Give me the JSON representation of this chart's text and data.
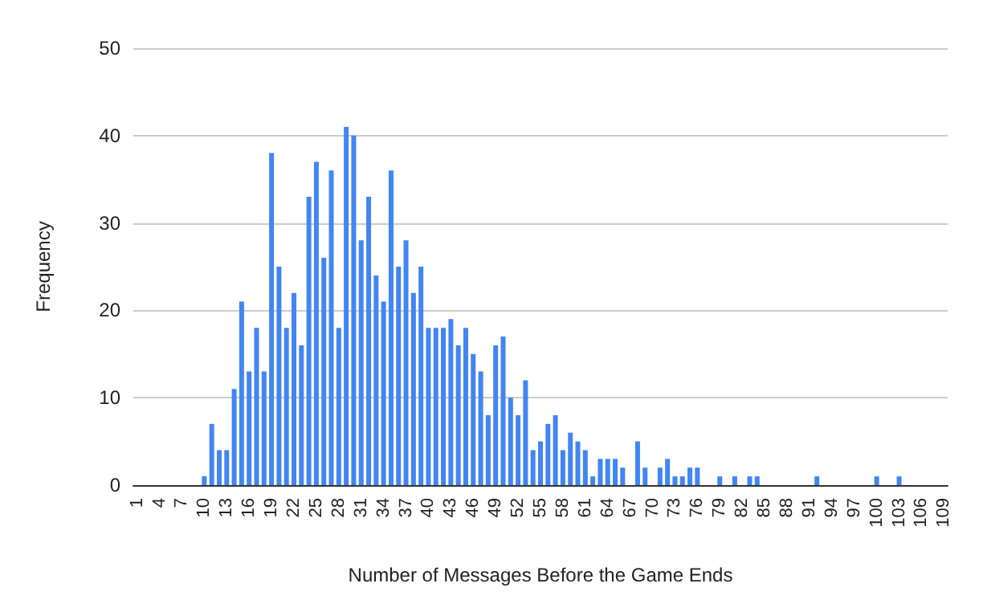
{
  "chart_data": {
    "type": "bar",
    "xlabel": "Number of Messages Before the Game Ends",
    "ylabel": "Frequency",
    "color": "#4285f4",
    "categories": [
      "1",
      null,
      null,
      "4",
      null,
      null,
      "7",
      null,
      null,
      "10",
      null,
      null,
      "13",
      null,
      null,
      "16",
      null,
      null,
      "19",
      null,
      null,
      "22",
      null,
      null,
      "25",
      null,
      null,
      "28",
      null,
      null,
      "31",
      null,
      null,
      "34",
      null,
      null,
      "37",
      null,
      null,
      "40",
      null,
      null,
      "43",
      null,
      null,
      "46",
      null,
      null,
      "49",
      null,
      null,
      "52",
      null,
      null,
      "55",
      null,
      null,
      "58",
      null,
      null,
      "61",
      null,
      null,
      "64",
      null,
      null,
      "67",
      null,
      null,
      "70",
      null,
      null,
      "73",
      null,
      null,
      "76",
      null,
      null,
      "79",
      null,
      null,
      "82",
      null,
      null,
      "85",
      null,
      null,
      "88",
      null,
      null,
      "91",
      null,
      null,
      "94",
      null,
      null,
      "97",
      null,
      null,
      "100",
      null,
      null,
      "103",
      null,
      null,
      "106",
      null,
      null,
      "109"
    ],
    "values": [
      0,
      0,
      0,
      0,
      0,
      0,
      0,
      0,
      0,
      1,
      7,
      4,
      4,
      11,
      21,
      13,
      18,
      13,
      38,
      25,
      18,
      22,
      16,
      33,
      37,
      26,
      36,
      18,
      41,
      40,
      28,
      33,
      24,
      21,
      36,
      25,
      28,
      22,
      25,
      18,
      18,
      18,
      19,
      16,
      18,
      15,
      13,
      8,
      16,
      17,
      10,
      8,
      12,
      4,
      5,
      7,
      8,
      4,
      6,
      5,
      4,
      1,
      3,
      3,
      3,
      2,
      0,
      5,
      2,
      0,
      2,
      3,
      1,
      1,
      2,
      2,
      0,
      0,
      1,
      0,
      1,
      0,
      1,
      1,
      0,
      0,
      0,
      0,
      0,
      0,
      0,
      1,
      0,
      0,
      0,
      0,
      0,
      0,
      0,
      1,
      0,
      0,
      1,
      0,
      0,
      0,
      0,
      0,
      0
    ],
    "ylim": [
      0,
      50
    ],
    "yticks": [
      0,
      10,
      20,
      30,
      40,
      50
    ],
    "grid": "y"
  }
}
